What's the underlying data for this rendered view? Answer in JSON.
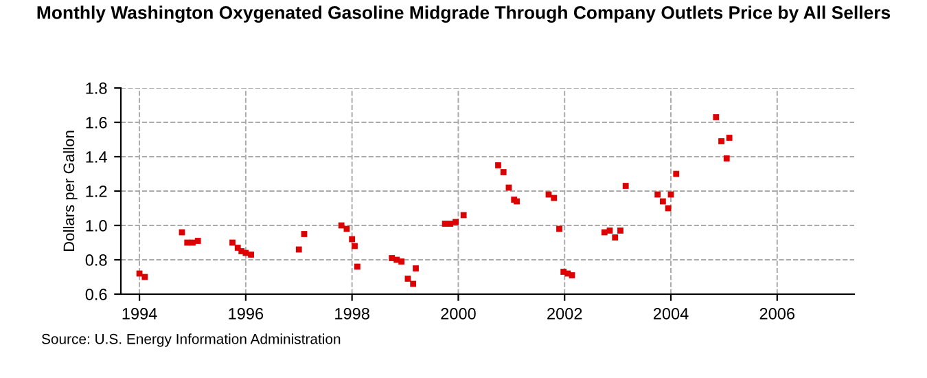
{
  "chart_data": {
    "type": "scatter",
    "title": "Monthly Washington Oxygenated Gasoline Midgrade Through Company Outlets Price by All Sellers",
    "ylabel": "Dollars per Gallon",
    "x": [
      1994.0,
      1994.1,
      1994.8,
      1994.9,
      1995.0,
      1995.1,
      1995.75,
      1995.85,
      1995.92,
      1996.0,
      1996.1,
      1997.0,
      1997.1,
      1997.8,
      1997.9,
      1998.0,
      1998.05,
      1998.1,
      1998.75,
      1998.84,
      1998.93,
      1999.05,
      1999.15,
      1999.2,
      1999.75,
      1999.85,
      1999.95,
      2000.1,
      2000.75,
      2000.85,
      2000.95,
      2001.05,
      2001.1,
      2001.7,
      2001.8,
      2001.9,
      2001.98,
      2002.06,
      2002.14,
      2002.75,
      2002.85,
      2002.95,
      2003.05,
      2003.15,
      2003.75,
      2003.85,
      2003.95,
      2004.0,
      2004.1,
      2004.85,
      2004.95,
      2005.05,
      2005.1
    ],
    "series": [
      {
        "color": "#dd0000",
        "values": [
          0.72,
          0.7,
          0.96,
          0.9,
          0.9,
          0.91,
          0.9,
          0.87,
          0.85,
          0.84,
          0.83,
          0.86,
          0.95,
          1.0,
          0.98,
          0.92,
          0.88,
          0.76,
          0.81,
          0.8,
          0.79,
          0.69,
          0.66,
          0.75,
          1.01,
          1.01,
          1.02,
          1.06,
          1.35,
          1.31,
          1.22,
          1.15,
          1.14,
          1.18,
          1.16,
          0.98,
          0.73,
          0.72,
          0.71,
          0.96,
          0.97,
          0.93,
          0.97,
          1.23,
          1.18,
          1.14,
          1.1,
          1.18,
          1.3,
          1.63,
          1.49,
          1.39,
          1.51
        ]
      }
    ],
    "xlim": [
      1993.65,
      2007.45
    ],
    "xticks": [
      1994,
      1996,
      1998,
      2000,
      2002,
      2004,
      2006
    ],
    "ylim": [
      0.6,
      1.8
    ],
    "yticks": [
      0.6,
      0.8,
      {
        "value": 1.0,
        "label": "1.0"
      },
      1.2,
      1.4,
      1.6,
      1.8
    ],
    "grid": true,
    "marker": "square",
    "annotations": [
      "Source: U.S. Energy Information Administration"
    ]
  }
}
